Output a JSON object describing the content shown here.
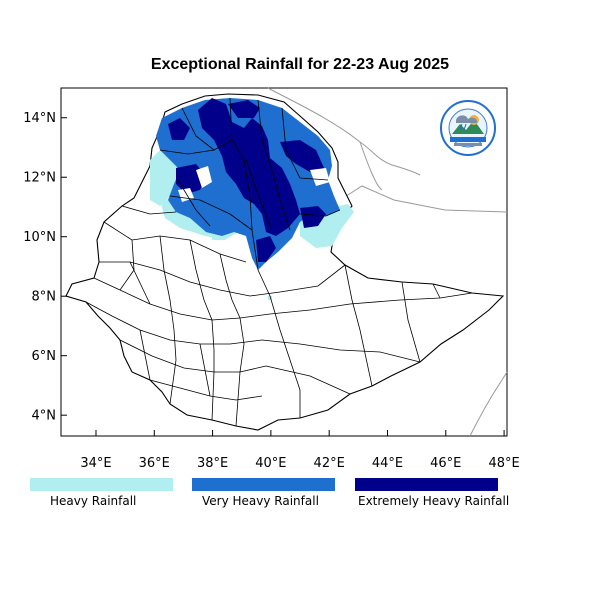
{
  "map": {
    "title": "Exceptional Rainfall for 22-23 Aug 2025",
    "lat_ticks": [
      "14°N",
      "12°N",
      "10°N",
      "8°N",
      "6°N",
      "4°N"
    ],
    "lon_ticks": [
      "34°E",
      "36°E",
      "38°E",
      "40°E",
      "42°E",
      "44°E",
      "46°E",
      "48°E"
    ],
    "lat_range": [
      3.3,
      15.0
    ],
    "lon_range": [
      32.8,
      48.1
    ]
  },
  "legend": [
    {
      "label": "Heavy Rainfall",
      "color": "#b0eef0"
    },
    {
      "label": "Very Heavy Rainfall",
      "color": "#1e6fd0"
    },
    {
      "label": "Extremely Heavy Rainfall",
      "color": "#00008b"
    }
  ],
  "logo": {
    "name": "meteorology-agency-logo"
  }
}
